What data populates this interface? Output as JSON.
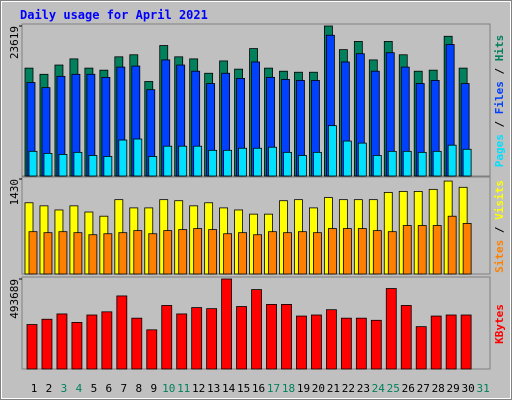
{
  "chart_data": [
    {
      "type": "bar",
      "title": "Daily usage for April 2021",
      "legend_separator": " / ",
      "ylim": [
        0,
        23619
      ],
      "yticks": [
        23619
      ],
      "series": [
        {
          "name": "Hits",
          "color": "#00805c",
          "values": [
            16986,
            16016,
            17472,
            18442,
            16986,
            16663,
            18766,
            19089,
            14883,
            20545,
            18766,
            18442,
            16177,
            18119,
            16825,
            20060,
            16986,
            16501,
            16339,
            16339,
            23619,
            19898,
            21192,
            18280,
            21192,
            19089,
            16501,
            16663,
            22001,
            16986,
            null
          ]
        },
        {
          "name": "Files",
          "color": "#0040ff",
          "values": [
            14721,
            13912,
            15692,
            16015,
            16015,
            15530,
            17148,
            17309,
            13589,
            18280,
            17471,
            16501,
            14559,
            16177,
            15368,
            17956,
            15530,
            15206,
            15045,
            15045,
            22162,
            17956,
            19251,
            16501,
            19412,
            17148,
            14559,
            15045,
            20707,
            14559,
            null
          ]
        },
        {
          "name": "Pages",
          "color": "#00e0ff",
          "values": [
            3882,
            3559,
            3397,
            3721,
            3235,
            3074,
            5662,
            5824,
            3074,
            4691,
            4691,
            4691,
            4044,
            4044,
            4368,
            4368,
            4530,
            3721,
            3235,
            3721,
            7927,
            5500,
            5177,
            3235,
            3882,
            3882,
            3721,
            3882,
            4853,
            4206,
            null
          ]
        }
      ]
    },
    {
      "type": "bar",
      "legend_separator": " / ",
      "ylim": [
        0,
        1430
      ],
      "yticks": [
        1430
      ],
      "series": [
        {
          "name": "Visits",
          "color": "#ffff00",
          "values": [
            1072,
            1026,
            964,
            1026,
            933,
            870,
            1119,
            995,
            995,
            1119,
            1103,
            1026,
            1072,
            995,
            964,
            901,
            901,
            1103,
            1119,
            995,
            1150,
            1119,
            1119,
            1119,
            1228,
            1243,
            1243,
            1274,
            1399,
            1305,
            null
          ]
        },
        {
          "name": "Sites",
          "color": "#ff8000",
          "values": [
            637,
            622,
            637,
            622,
            591,
            606,
            622,
            653,
            606,
            653,
            668,
            684,
            668,
            606,
            622,
            591,
            637,
            622,
            637,
            622,
            684,
            684,
            684,
            653,
            637,
            730,
            730,
            730,
            870,
            761,
            null
          ]
        }
      ]
    },
    {
      "type": "bar",
      "ylim": [
        0,
        493689
      ],
      "yticks": [
        493689
      ],
      "categories": [
        "1",
        "2",
        "3",
        "4",
        "5",
        "6",
        "7",
        "8",
        "9",
        "10",
        "11",
        "12",
        "13",
        "14",
        "15",
        "16",
        "17",
        "18",
        "19",
        "20",
        "21",
        "22",
        "23",
        "24",
        "25",
        "26",
        "27",
        "28",
        "29",
        "30",
        "31"
      ],
      "category_colors": [
        "#000000",
        "#000000",
        "#00805c",
        "#00805c",
        "#000000",
        "#000000",
        "#000000",
        "#000000",
        "#000000",
        "#00805c",
        "#00805c",
        "#000000",
        "#000000",
        "#000000",
        "#000000",
        "#000000",
        "#00805c",
        "#00805c",
        "#000000",
        "#000000",
        "#000000",
        "#000000",
        "#000000",
        "#00805c",
        "#00805c",
        "#000000",
        "#000000",
        "#000000",
        "#000000",
        "#000000",
        "#00805c"
      ],
      "series": [
        {
          "name": "KBytes",
          "color": "#ff0000",
          "values": [
            243936,
            272976,
            302016,
            255552,
            296208,
            313632,
            400752,
            278784,
            214896,
            348480,
            302016,
            336864,
            331056,
            493689,
            342672,
            435600,
            354288,
            354288,
            290400,
            296208,
            325248,
            278784,
            278784,
            267168,
            441408,
            348480,
            232320,
            290400,
            296208,
            296208,
            null
          ]
        }
      ]
    }
  ]
}
